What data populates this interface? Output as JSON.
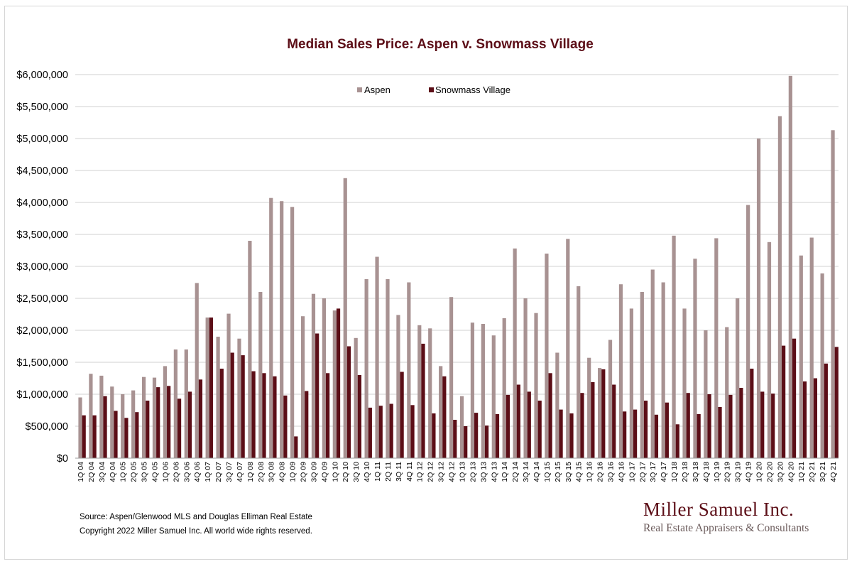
{
  "colors": {
    "aspen": "#a89292",
    "snowmass": "#5c0e17",
    "title": "#5c0e17",
    "brand": "#5c0e17",
    "brand_tag": "#6a5a5a",
    "grid": "#d0d0d0"
  },
  "footer": {
    "source": "Source: Aspen/Glenwood MLS and Douglas Elliman Real Estate",
    "copyright": "Copyright 2022 Miller Samuel Inc.  All world wide rights reserved."
  },
  "brand": {
    "name": "Miller Samuel Inc.",
    "tagline": "Real Estate Appraisers & Consultants"
  },
  "chart_data": {
    "type": "bar",
    "title": "Median Sales Price: Aspen v. Snowmass Village",
    "xlabel": "",
    "ylabel": "",
    "ylim": [
      0,
      6000000
    ],
    "y_ticks": [
      "$0",
      "$500,000",
      "$1,000,000",
      "$1,500,000",
      "$2,000,000",
      "$2,500,000",
      "$3,000,000",
      "$3,500,000",
      "$4,000,000",
      "$4,500,000",
      "$5,000,000",
      "$5,500,000",
      "$6,000,000"
    ],
    "grid": true,
    "legend_position": "top-center",
    "categories": [
      "1Q 04",
      "2Q 04",
      "3Q 04",
      "4Q 04",
      "1Q 05",
      "2Q 05",
      "3Q 05",
      "4Q 05",
      "1Q 06",
      "2Q 06",
      "3Q 06",
      "4Q 06",
      "1Q 07",
      "2Q 07",
      "3Q 07",
      "4Q 07",
      "1Q 08",
      "2Q 08",
      "3Q 08",
      "4Q 08",
      "1Q 09",
      "2Q 09",
      "3Q 09",
      "4Q 09",
      "1Q 10",
      "2Q 10",
      "3Q 10",
      "4Q 10",
      "1Q 11",
      "2Q 11",
      "3Q 11",
      "4Q 11",
      "1Q 12",
      "2Q 12",
      "3Q 12",
      "4Q 12",
      "1Q 13",
      "2Q 13",
      "3Q 13",
      "4Q 13",
      "1Q 14",
      "2Q 14",
      "3Q 14",
      "4Q 14",
      "1Q 15",
      "2Q 15",
      "3Q 15",
      "4Q 15",
      "1Q 16",
      "2Q 16",
      "3Q 16",
      "4Q 16",
      "1Q 17",
      "2Q 17",
      "3Q 17",
      "4Q 17",
      "1Q 18",
      "2Q 18",
      "3Q 18",
      "4Q 18",
      "1Q 19",
      "2Q 19",
      "3Q 19",
      "4Q 19",
      "1Q 20",
      "2Q 20",
      "3Q 20",
      "4Q 20",
      "1Q 21",
      "2Q 21",
      "3Q 21",
      "4Q 21"
    ],
    "series": [
      {
        "name": "Aspen",
        "values": [
          950000,
          1320000,
          1290000,
          1120000,
          1000000,
          1060000,
          1270000,
          1260000,
          1440000,
          1700000,
          1700000,
          2740000,
          2200000,
          1900000,
          2260000,
          1870000,
          3400000,
          2600000,
          4070000,
          4020000,
          3930000,
          2220000,
          2570000,
          2500000,
          2310000,
          4380000,
          1880000,
          2800000,
          3150000,
          2800000,
          2240000,
          2750000,
          2080000,
          2030000,
          1440000,
          2520000,
          970000,
          2120000,
          2100000,
          1920000,
          2190000,
          3280000,
          2500000,
          2270000,
          3200000,
          1650000,
          3430000,
          2690000,
          1570000,
          1410000,
          1850000,
          2720000,
          2340000,
          2600000,
          2950000,
          2750000,
          3480000,
          2340000,
          3120000,
          2000000,
          3440000,
          2050000,
          2500000,
          3960000,
          5000000,
          3380000,
          5350000,
          5980000,
          3170000,
          3450000,
          2890000,
          5130000
        ]
      },
      {
        "name": "Snowmass Village",
        "values": [
          670000,
          670000,
          970000,
          740000,
          630000,
          720000,
          900000,
          1110000,
          1130000,
          930000,
          1040000,
          1230000,
          2200000,
          1400000,
          1650000,
          1610000,
          1360000,
          1330000,
          1280000,
          980000,
          340000,
          1050000,
          1950000,
          1330000,
          2340000,
          1750000,
          1300000,
          790000,
          820000,
          850000,
          1350000,
          830000,
          1790000,
          700000,
          1280000,
          600000,
          500000,
          710000,
          510000,
          690000,
          990000,
          1150000,
          1040000,
          900000,
          1330000,
          760000,
          700000,
          1020000,
          1190000,
          1390000,
          1150000,
          730000,
          760000,
          900000,
          680000,
          870000,
          530000,
          1020000,
          690000,
          1000000,
          800000,
          990000,
          1100000,
          1400000,
          1040000,
          1010000,
          1760000,
          1870000,
          1200000,
          1250000,
          1480000,
          1740000
        ]
      }
    ]
  }
}
